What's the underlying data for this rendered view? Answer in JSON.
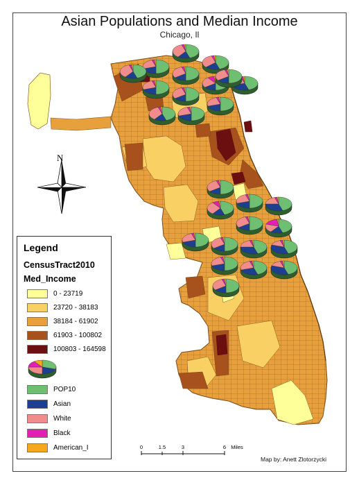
{
  "title": "Asian Populations and Median Income",
  "subtitle": "Chicago, Il",
  "north_label": "N",
  "credit": "Map by: Anett Zlotorzycki",
  "colors": {
    "background": "#ffffff",
    "tract_border": "#7a4a1a",
    "lake": "#ffffff"
  },
  "legend": {
    "title": "Legend",
    "layer": "CensusTract2010",
    "field": "Med_Income",
    "classes": [
      {
        "label": "0 - 23719",
        "color": "#ffff99"
      },
      {
        "label": "23720 - 38183",
        "color": "#f9d063"
      },
      {
        "label": "38184 - 61902",
        "color": "#e8a03c"
      },
      {
        "label": "61903 - 100802",
        "color": "#a7521c"
      },
      {
        "label": "100803 - 164598",
        "color": "#6b0f10"
      }
    ],
    "pie_fields": [
      {
        "label": "POP10",
        "color": "#6fbf73"
      },
      {
        "label": "Asian",
        "color": "#1d3f8f"
      },
      {
        "label": "White",
        "color": "#f08c8c"
      },
      {
        "label": "Black",
        "color": "#e41fb3"
      },
      {
        "label": "American_I",
        "color": "#f5a81c"
      }
    ]
  },
  "scalebar": {
    "ticks": [
      "0",
      "1.5",
      "3",
      "6"
    ],
    "unit": "Miles"
  },
  "pies": [
    {
      "name": "pie-north-1",
      "shares": [
        0.45,
        0.15,
        0.35,
        0.03,
        0.02
      ]
    },
    {
      "name": "pie-north-2",
      "shares": [
        0.5,
        0.2,
        0.25,
        0.03,
        0.02
      ]
    },
    {
      "name": "pie-north-3",
      "shares": [
        0.45,
        0.18,
        0.32,
        0.03,
        0.02
      ]
    },
    {
      "name": "pie-north-4",
      "shares": [
        0.5,
        0.15,
        0.3,
        0.03,
        0.02
      ]
    },
    {
      "name": "pie-north-5",
      "shares": [
        0.5,
        0.2,
        0.25,
        0.03,
        0.02
      ]
    },
    {
      "name": "pie-north-6",
      "shares": [
        0.5,
        0.15,
        0.25,
        0.08,
        0.02
      ]
    },
    {
      "name": "pie-north-7",
      "shares": [
        0.45,
        0.25,
        0.25,
        0.03,
        0.02
      ]
    },
    {
      "name": "pie-north-8",
      "shares": [
        0.5,
        0.15,
        0.3,
        0.03,
        0.02
      ]
    },
    {
      "name": "pie-north-9",
      "shares": [
        0.5,
        0.2,
        0.25,
        0.03,
        0.02
      ]
    },
    {
      "name": "pie-north-10",
      "shares": [
        0.45,
        0.15,
        0.35,
        0.03,
        0.02
      ]
    },
    {
      "name": "pie-north-11",
      "shares": [
        0.5,
        0.2,
        0.25,
        0.03,
        0.02
      ]
    },
    {
      "name": "pie-north-12",
      "shares": [
        0.45,
        0.15,
        0.35,
        0.03,
        0.02
      ]
    },
    {
      "name": "pie-north-13",
      "shares": [
        0.5,
        0.15,
        0.3,
        0.03,
        0.02
      ]
    },
    {
      "name": "pie-south-1",
      "shares": [
        0.5,
        0.15,
        0.3,
        0.03,
        0.02
      ]
    },
    {
      "name": "pie-south-2",
      "shares": [
        0.45,
        0.15,
        0.3,
        0.08,
        0.02
      ]
    },
    {
      "name": "pie-south-3",
      "shares": [
        0.5,
        0.2,
        0.25,
        0.03,
        0.02
      ]
    },
    {
      "name": "pie-south-4",
      "shares": [
        0.45,
        0.3,
        0.2,
        0.03,
        0.02
      ]
    },
    {
      "name": "pie-south-5",
      "shares": [
        0.5,
        0.15,
        0.3,
        0.03,
        0.02
      ]
    },
    {
      "name": "pie-south-6",
      "shares": [
        0.45,
        0.15,
        0.2,
        0.18,
        0.02
      ]
    },
    {
      "name": "pie-south-7",
      "shares": [
        0.5,
        0.2,
        0.25,
        0.03,
        0.02
      ]
    },
    {
      "name": "pie-south-8",
      "shares": [
        0.5,
        0.15,
        0.3,
        0.03,
        0.02
      ]
    },
    {
      "name": "pie-south-9",
      "shares": [
        0.45,
        0.3,
        0.2,
        0.03,
        0.02
      ]
    },
    {
      "name": "pie-south-10",
      "shares": [
        0.45,
        0.35,
        0.15,
        0.03,
        0.02
      ]
    },
    {
      "name": "pie-south-11",
      "shares": [
        0.5,
        0.2,
        0.25,
        0.03,
        0.02
      ]
    },
    {
      "name": "pie-south-12",
      "shares": [
        0.45,
        0.25,
        0.25,
        0.03,
        0.02
      ]
    },
    {
      "name": "pie-south-13",
      "shares": [
        0.45,
        0.35,
        0.15,
        0.03,
        0.02
      ]
    },
    {
      "name": "pie-south-14",
      "shares": [
        0.5,
        0.15,
        0.3,
        0.03,
        0.02
      ]
    }
  ]
}
